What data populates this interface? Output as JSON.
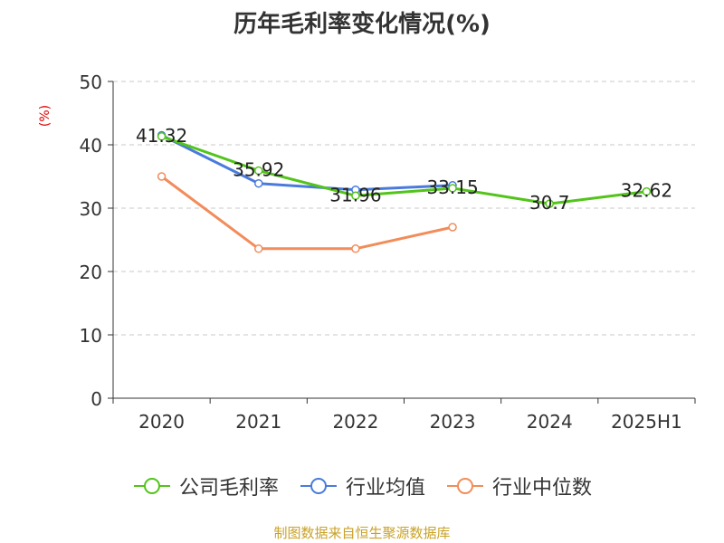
{
  "chart_data": {
    "type": "line",
    "title": "历年毛利率变化情况(%)",
    "ylabel": "(%)",
    "xlabel": "",
    "categories": [
      "2020",
      "2021",
      "2022",
      "2023",
      "2024",
      "2025H1"
    ],
    "ylim": [
      0,
      50
    ],
    "yticks": [
      0,
      10,
      20,
      30,
      40,
      50
    ],
    "grid": true,
    "legend_position": "bottom",
    "series": [
      {
        "name": "公司毛利率",
        "color": "#52c41a",
        "values": [
          41.32,
          35.92,
          31.96,
          33.15,
          30.7,
          32.62
        ],
        "labels": [
          "41.32",
          "35.92",
          "31.96",
          "33.15",
          "30.7",
          "32.62"
        ]
      },
      {
        "name": "行业均值",
        "color": "#4a7bdc",
        "values": [
          41.5,
          33.9,
          32.9,
          33.6,
          null,
          null
        ]
      },
      {
        "name": "行业中位数",
        "color": "#f28c5a",
        "values": [
          35.0,
          23.6,
          23.6,
          27.0,
          null,
          null
        ]
      }
    ]
  },
  "footer": "制图数据来自恒生聚源数据库"
}
